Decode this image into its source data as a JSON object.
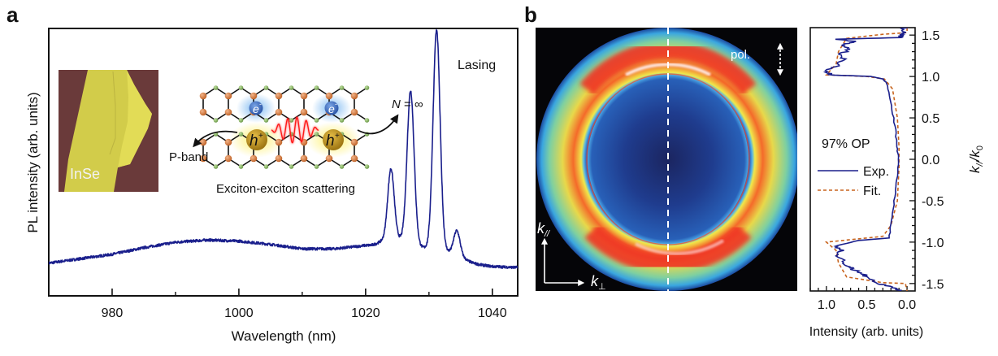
{
  "figure": {
    "panels": [
      "a",
      "b"
    ]
  },
  "panel_a": {
    "letter": "a",
    "inset_label": "InSe",
    "schematic": {
      "electron_label": "e",
      "electron_sup": "-",
      "hole_label": "h",
      "hole_sup": "+",
      "left_arrow_label": "P-band",
      "right_arrow_label_N": "N",
      "right_arrow_label_rest": " = ∞",
      "caption": "Exciton-exciton scattering"
    },
    "annotation": "Lasing"
  },
  "panel_b": {
    "letter": "b",
    "image_description": "Fourier-space PL image with circular ring pattern",
    "pol_label": "pol.",
    "k_par_label": "k",
    "k_par_sub": "//",
    "k_perp_label": "k",
    "k_perp_sub": "⊥",
    "op_label": "97% OP",
    "legend": [
      {
        "name": "Exp.",
        "style": "solid",
        "color": "#1a1f8c"
      },
      {
        "name": "Fit.",
        "style": "dashed",
        "color": "#c8641e"
      }
    ]
  },
  "colors": {
    "spectrum": "#1a1f8c",
    "fit": "#c8641e",
    "inset_bg": "#6a3a3a",
    "flake": "#d8d050"
  },
  "chart_data": [
    {
      "type": "line",
      "title": "",
      "xlabel": "Wavelength (nm)",
      "ylabel": "PL intensity (arb. units)",
      "xlim": [
        970,
        1044
      ],
      "ylim": [
        0,
        1.05
      ],
      "xticks": [
        980,
        1000,
        1020,
        1040
      ],
      "xticks_minor": [
        990,
        1010,
        1030
      ],
      "yticks": [],
      "grid": false,
      "series": [
        {
          "name": "PL spectrum",
          "baseline_points": [
            [
              970,
              0.06
            ],
            [
              975,
              0.08
            ],
            [
              980,
              0.1
            ],
            [
              985,
              0.13
            ],
            [
              990,
              0.155
            ],
            [
              995,
              0.165
            ],
            [
              1000,
              0.16
            ],
            [
              1005,
              0.145
            ],
            [
              1010,
              0.125
            ],
            [
              1015,
              0.125
            ],
            [
              1020,
              0.14
            ],
            [
              1022,
              0.135
            ],
            [
              1036,
              0.06
            ],
            [
              1040,
              0.045
            ],
            [
              1044,
              0.04
            ]
          ],
          "peaks": [
            {
              "center": 1024.0,
              "height": 0.33
            },
            {
              "center": 1027.1,
              "height": 0.7
            },
            {
              "center": 1031.2,
              "height": 1.0
            },
            {
              "center": 1034.4,
              "height": 0.13
            }
          ]
        }
      ]
    },
    {
      "type": "line",
      "title": "",
      "xlabel": "Intensity (arb. units)",
      "ylabel": "k///k0",
      "xlim": [
        1.2,
        -0.1
      ],
      "ylim": [
        -1.59,
        1.59
      ],
      "xticks": [
        1.0,
        0.5,
        0.0
      ],
      "yticks": [
        1.5,
        1.0,
        0.5,
        0.0,
        -0.5,
        -1.0,
        -1.5
      ],
      "grid": false,
      "legend_position": "left-middle",
      "series": [
        {
          "name": "Exp.",
          "points": [
            [
              0.03,
              1.59
            ],
            [
              0.05,
              1.52
            ],
            [
              0.08,
              1.47
            ],
            [
              0.85,
              1.45
            ],
            [
              0.62,
              1.42
            ],
            [
              0.82,
              1.38
            ],
            [
              0.7,
              1.33
            ],
            [
              0.84,
              1.27
            ],
            [
              0.78,
              1.2
            ],
            [
              0.87,
              1.13
            ],
            [
              1.0,
              1.06
            ],
            [
              0.95,
              1.02
            ],
            [
              0.45,
              1.0
            ],
            [
              0.3,
              0.97
            ],
            [
              0.25,
              0.92
            ],
            [
              0.2,
              0.7
            ],
            [
              0.15,
              0.4
            ],
            [
              0.12,
              0.15
            ],
            [
              0.11,
              0.0
            ],
            [
              0.12,
              -0.2
            ],
            [
              0.15,
              -0.45
            ],
            [
              0.2,
              -0.75
            ],
            [
              0.22,
              -0.95
            ],
            [
              0.6,
              -0.98
            ],
            [
              0.9,
              -1.05
            ],
            [
              0.82,
              -1.1
            ],
            [
              0.86,
              -1.15
            ],
            [
              0.78,
              -1.25
            ],
            [
              0.72,
              -1.3
            ],
            [
              0.66,
              -1.33
            ],
            [
              0.55,
              -1.38
            ],
            [
              0.5,
              -1.42
            ],
            [
              0.35,
              -1.5
            ],
            [
              0.15,
              -1.55
            ],
            [
              0.08,
              -1.59
            ]
          ]
        },
        {
          "name": "Fit.",
          "points": [
            [
              0.0,
              1.59
            ],
            [
              0.0,
              1.53
            ],
            [
              0.3,
              1.51
            ],
            [
              0.75,
              1.46
            ],
            [
              0.85,
              1.3
            ],
            [
              0.88,
              1.15
            ],
            [
              1.0,
              1.02
            ],
            [
              0.5,
              1.0
            ],
            [
              0.28,
              0.97
            ],
            [
              0.18,
              0.85
            ],
            [
              0.12,
              0.5
            ],
            [
              0.1,
              0.15
            ],
            [
              0.1,
              -0.1
            ],
            [
              0.12,
              -0.5
            ],
            [
              0.2,
              -0.8
            ],
            [
              0.3,
              -0.93
            ],
            [
              1.0,
              -1.0
            ],
            [
              0.88,
              -1.1
            ],
            [
              0.85,
              -1.25
            ],
            [
              0.75,
              -1.42
            ],
            [
              0.3,
              -1.49
            ],
            [
              0.02,
              -1.5
            ],
            [
              0.0,
              -1.59
            ]
          ]
        }
      ]
    }
  ]
}
